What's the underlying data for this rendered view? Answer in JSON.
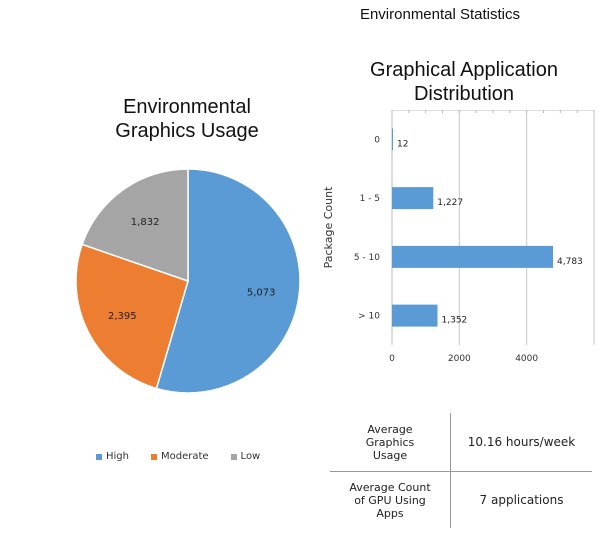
{
  "page": {
    "title": "Environmental Statistics"
  },
  "chart_data": [
    {
      "type": "pie",
      "title": "Environmental Graphics Usage",
      "categories": [
        "High",
        "Moderate",
        "Low"
      ],
      "values": [
        5073,
        2395,
        1832
      ],
      "value_labels": [
        "5,073",
        "2,395",
        "1,832"
      ],
      "colors": [
        "#5b9bd5",
        "#ed7d31",
        "#a5a5a5"
      ],
      "legend_position": "bottom"
    },
    {
      "type": "bar",
      "orientation": "horizontal",
      "title": "Graphical Application Distribution",
      "ylabel": "Package Count",
      "xlabel": "",
      "categories": [
        "0",
        "1 - 5",
        "5 - 10",
        "> 10"
      ],
      "values": [
        12,
        1227,
        4783,
        1352
      ],
      "value_labels": [
        "12",
        "1,227",
        "4,783",
        "1,352"
      ],
      "xlim": [
        0,
        6000
      ],
      "xticks": [
        0,
        2000,
        4000
      ],
      "grid": true,
      "color": "#5b9bd5"
    }
  ],
  "stats_table": {
    "rows": [
      {
        "label_lines": [
          "Average",
          "Graphics",
          "Usage"
        ],
        "value": "10.16 hours/week"
      },
      {
        "label_lines": [
          "Average Count",
          "of GPU Using",
          "Apps"
        ],
        "value": "7 applications"
      }
    ]
  }
}
